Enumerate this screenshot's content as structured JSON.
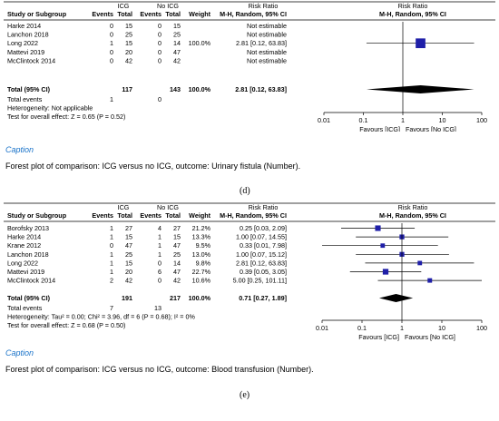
{
  "chart_data": [
    {
      "type": "forest",
      "panel_label": "(d)",
      "caption_title": "Caption",
      "caption_text": "Forest plot of comparison: ICG versus no ICG, outcome: Urinary fistula (Number).",
      "header": {
        "group1": "ICG",
        "group2": "No ICG",
        "effect_title": "Risk Ratio",
        "effect_sub": "M-H, Random, 95% CI",
        "plot_title": "Risk Ratio",
        "plot_sub": "M-H, Random, 95% CI",
        "study": "Study or Subgroup",
        "events": "Events",
        "total": "Total",
        "weight": "Weight"
      },
      "studies": [
        {
          "name": "Harke 2014",
          "e1": "0",
          "t1": "15",
          "e2": "0",
          "t2": "15",
          "weight": "",
          "ci": "Not estimable",
          "rr": null
        },
        {
          "name": "Lanchon 2018",
          "e1": "0",
          "t1": "25",
          "e2": "0",
          "t2": "25",
          "weight": "",
          "ci": "Not estimable",
          "rr": null
        },
        {
          "name": "Long 2022",
          "e1": "1",
          "t1": "15",
          "e2": "0",
          "t2": "14",
          "weight": "100.0%",
          "ci": "2.81 [0.12, 63.83]",
          "rr": 2.81,
          "lo": 0.12,
          "hi": 63.83,
          "w": 100.0
        },
        {
          "name": "Mattevi 2019",
          "e1": "0",
          "t1": "20",
          "e2": "0",
          "t2": "47",
          "weight": "",
          "ci": "Not estimable",
          "rr": null
        },
        {
          "name": "McClintock 2014",
          "e1": "0",
          "t1": "42",
          "e2": "0",
          "t2": "42",
          "weight": "",
          "ci": "Not estimable",
          "rr": null
        }
      ],
      "total": {
        "label": "Total (95% CI)",
        "t1": "117",
        "t2": "143",
        "weight": "100.0%",
        "ci": "2.81 [0.12, 63.83]",
        "rr": 2.81,
        "lo": 0.12,
        "hi": 63.83
      },
      "total_events": {
        "label": "Total events",
        "e1": "1",
        "e2": "0"
      },
      "heterogeneity": "Heterogeneity: Not applicable",
      "overall": "Test for overall effect: Z = 0.65 (P = 0.52)",
      "axis": {
        "ticks": [
          0.01,
          0.1,
          1,
          10,
          100
        ],
        "tick_labels": [
          "0.01",
          "0.1",
          "1",
          "10",
          "100"
        ],
        "scale": "log",
        "range": [
          0.01,
          100
        ]
      },
      "favours_left": "Favours [ICG]",
      "favours_right": "Favours [No ICG]"
    },
    {
      "type": "forest",
      "panel_label": "(e)",
      "caption_title": "Caption",
      "caption_text": "Forest plot of comparison: ICG versus no ICG, outcome: Blood transfusion (Number).",
      "header": {
        "group1": "ICG",
        "group2": "No ICG",
        "effect_title": "Risk Ratio",
        "effect_sub": "M-H, Random, 95% CI",
        "plot_title": "Risk Ratio",
        "plot_sub": "M-H, Random, 95% CI",
        "study": "Study or Subgroup",
        "events": "Events",
        "total": "Total",
        "weight": "Weight"
      },
      "studies": [
        {
          "name": "Borofsky 2013",
          "e1": "1",
          "t1": "27",
          "e2": "4",
          "t2": "27",
          "weight": "21.2%",
          "ci": "0.25 [0.03, 2.09]",
          "rr": 0.25,
          "lo": 0.03,
          "hi": 2.09,
          "w": 21.2
        },
        {
          "name": "Harke 2014",
          "e1": "1",
          "t1": "15",
          "e2": "1",
          "t2": "15",
          "weight": "13.3%",
          "ci": "1.00 [0.07, 14.55]",
          "rr": 1.0,
          "lo": 0.07,
          "hi": 14.55,
          "w": 13.3
        },
        {
          "name": "Krane 2012",
          "e1": "0",
          "t1": "47",
          "e2": "1",
          "t2": "47",
          "weight": "9.5%",
          "ci": "0.33 [0.01, 7.98]",
          "rr": 0.33,
          "lo": 0.01,
          "hi": 7.98,
          "w": 9.5
        },
        {
          "name": "Lanchon 2018",
          "e1": "1",
          "t1": "25",
          "e2": "1",
          "t2": "25",
          "weight": "13.0%",
          "ci": "1.00 [0.07, 15.12]",
          "rr": 1.0,
          "lo": 0.07,
          "hi": 15.12,
          "w": 13.0
        },
        {
          "name": "Long 2022",
          "e1": "1",
          "t1": "15",
          "e2": "0",
          "t2": "14",
          "weight": "9.8%",
          "ci": "2.81 [0.12, 63.83]",
          "rr": 2.81,
          "lo": 0.12,
          "hi": 63.83,
          "w": 9.8
        },
        {
          "name": "Mattevi 2019",
          "e1": "1",
          "t1": "20",
          "e2": "6",
          "t2": "47",
          "weight": "22.7%",
          "ci": "0.39 [0.05, 3.05]",
          "rr": 0.39,
          "lo": 0.05,
          "hi": 3.05,
          "w": 22.7
        },
        {
          "name": "McClintock 2014",
          "e1": "2",
          "t1": "42",
          "e2": "0",
          "t2": "42",
          "weight": "10.6%",
          "ci": "5.00 [0.25, 101.11]",
          "rr": 5.0,
          "lo": 0.25,
          "hi": 101.11,
          "w": 10.6
        }
      ],
      "total": {
        "label": "Total (95% CI)",
        "t1": "191",
        "t2": "217",
        "weight": "100.0%",
        "ci": "0.71 [0.27, 1.89]",
        "rr": 0.71,
        "lo": 0.27,
        "hi": 1.89
      },
      "total_events": {
        "label": "Total events",
        "e1": "7",
        "e2": "13"
      },
      "heterogeneity": "Heterogeneity: Tau² = 0.00; Chi² = 3.96, df = 6 (P = 0.68); I² = 0%",
      "overall": "Test for overall effect: Z = 0.68 (P = 0.50)",
      "axis": {
        "ticks": [
          0.01,
          0.1,
          1,
          10,
          100
        ],
        "tick_labels": [
          "0.01",
          "0.1",
          "1",
          "10",
          "100"
        ],
        "scale": "log",
        "range": [
          0.01,
          100
        ]
      },
      "favours_left": "Favours [ICG]",
      "favours_right": "Favours [No ICG]"
    }
  ],
  "colors": {
    "marker": "#1f1fa8",
    "caption": "#1a73c9",
    "text": "#000000"
  }
}
